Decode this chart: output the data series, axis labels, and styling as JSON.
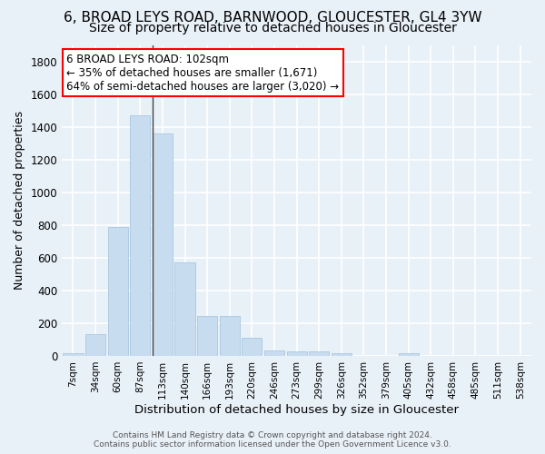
{
  "title": "6, BROAD LEYS ROAD, BARNWOOD, GLOUCESTER, GL4 3YW",
  "subtitle": "Size of property relative to detached houses in Gloucester",
  "xlabel": "Distribution of detached houses by size in Gloucester",
  "ylabel": "Number of detached properties",
  "bar_color": "#c8dcf0",
  "bar_edge_color": "#a0c0dc",
  "categories": [
    "7sqm",
    "34sqm",
    "60sqm",
    "87sqm",
    "113sqm",
    "140sqm",
    "166sqm",
    "193sqm",
    "220sqm",
    "246sqm",
    "273sqm",
    "299sqm",
    "326sqm",
    "352sqm",
    "379sqm",
    "405sqm",
    "432sqm",
    "458sqm",
    "485sqm",
    "511sqm",
    "538sqm"
  ],
  "values": [
    15,
    135,
    790,
    1470,
    1360,
    570,
    245,
    245,
    110,
    35,
    25,
    25,
    15,
    0,
    0,
    15,
    0,
    0,
    0,
    0,
    0
  ],
  "ylim": [
    0,
    1900
  ],
  "yticks": [
    0,
    200,
    400,
    600,
    800,
    1000,
    1200,
    1400,
    1600,
    1800
  ],
  "annotation_line1": "6 BROAD LEYS ROAD: 102sqm",
  "annotation_line2": "← 35% of detached houses are smaller (1,671)",
  "annotation_line3": "64% of semi-detached houses are larger (3,020) →",
  "footer1": "Contains HM Land Registry data © Crown copyright and database right 2024.",
  "footer2": "Contains public sector information licensed under the Open Government Licence v3.0.",
  "bg_color": "#e8f0f8",
  "grid_color": "#ffffff",
  "vertical_line_x": 3.57,
  "title_fontsize": 11,
  "subtitle_fontsize": 10,
  "ylabel_fontsize": 9,
  "xlabel_fontsize": 9.5
}
